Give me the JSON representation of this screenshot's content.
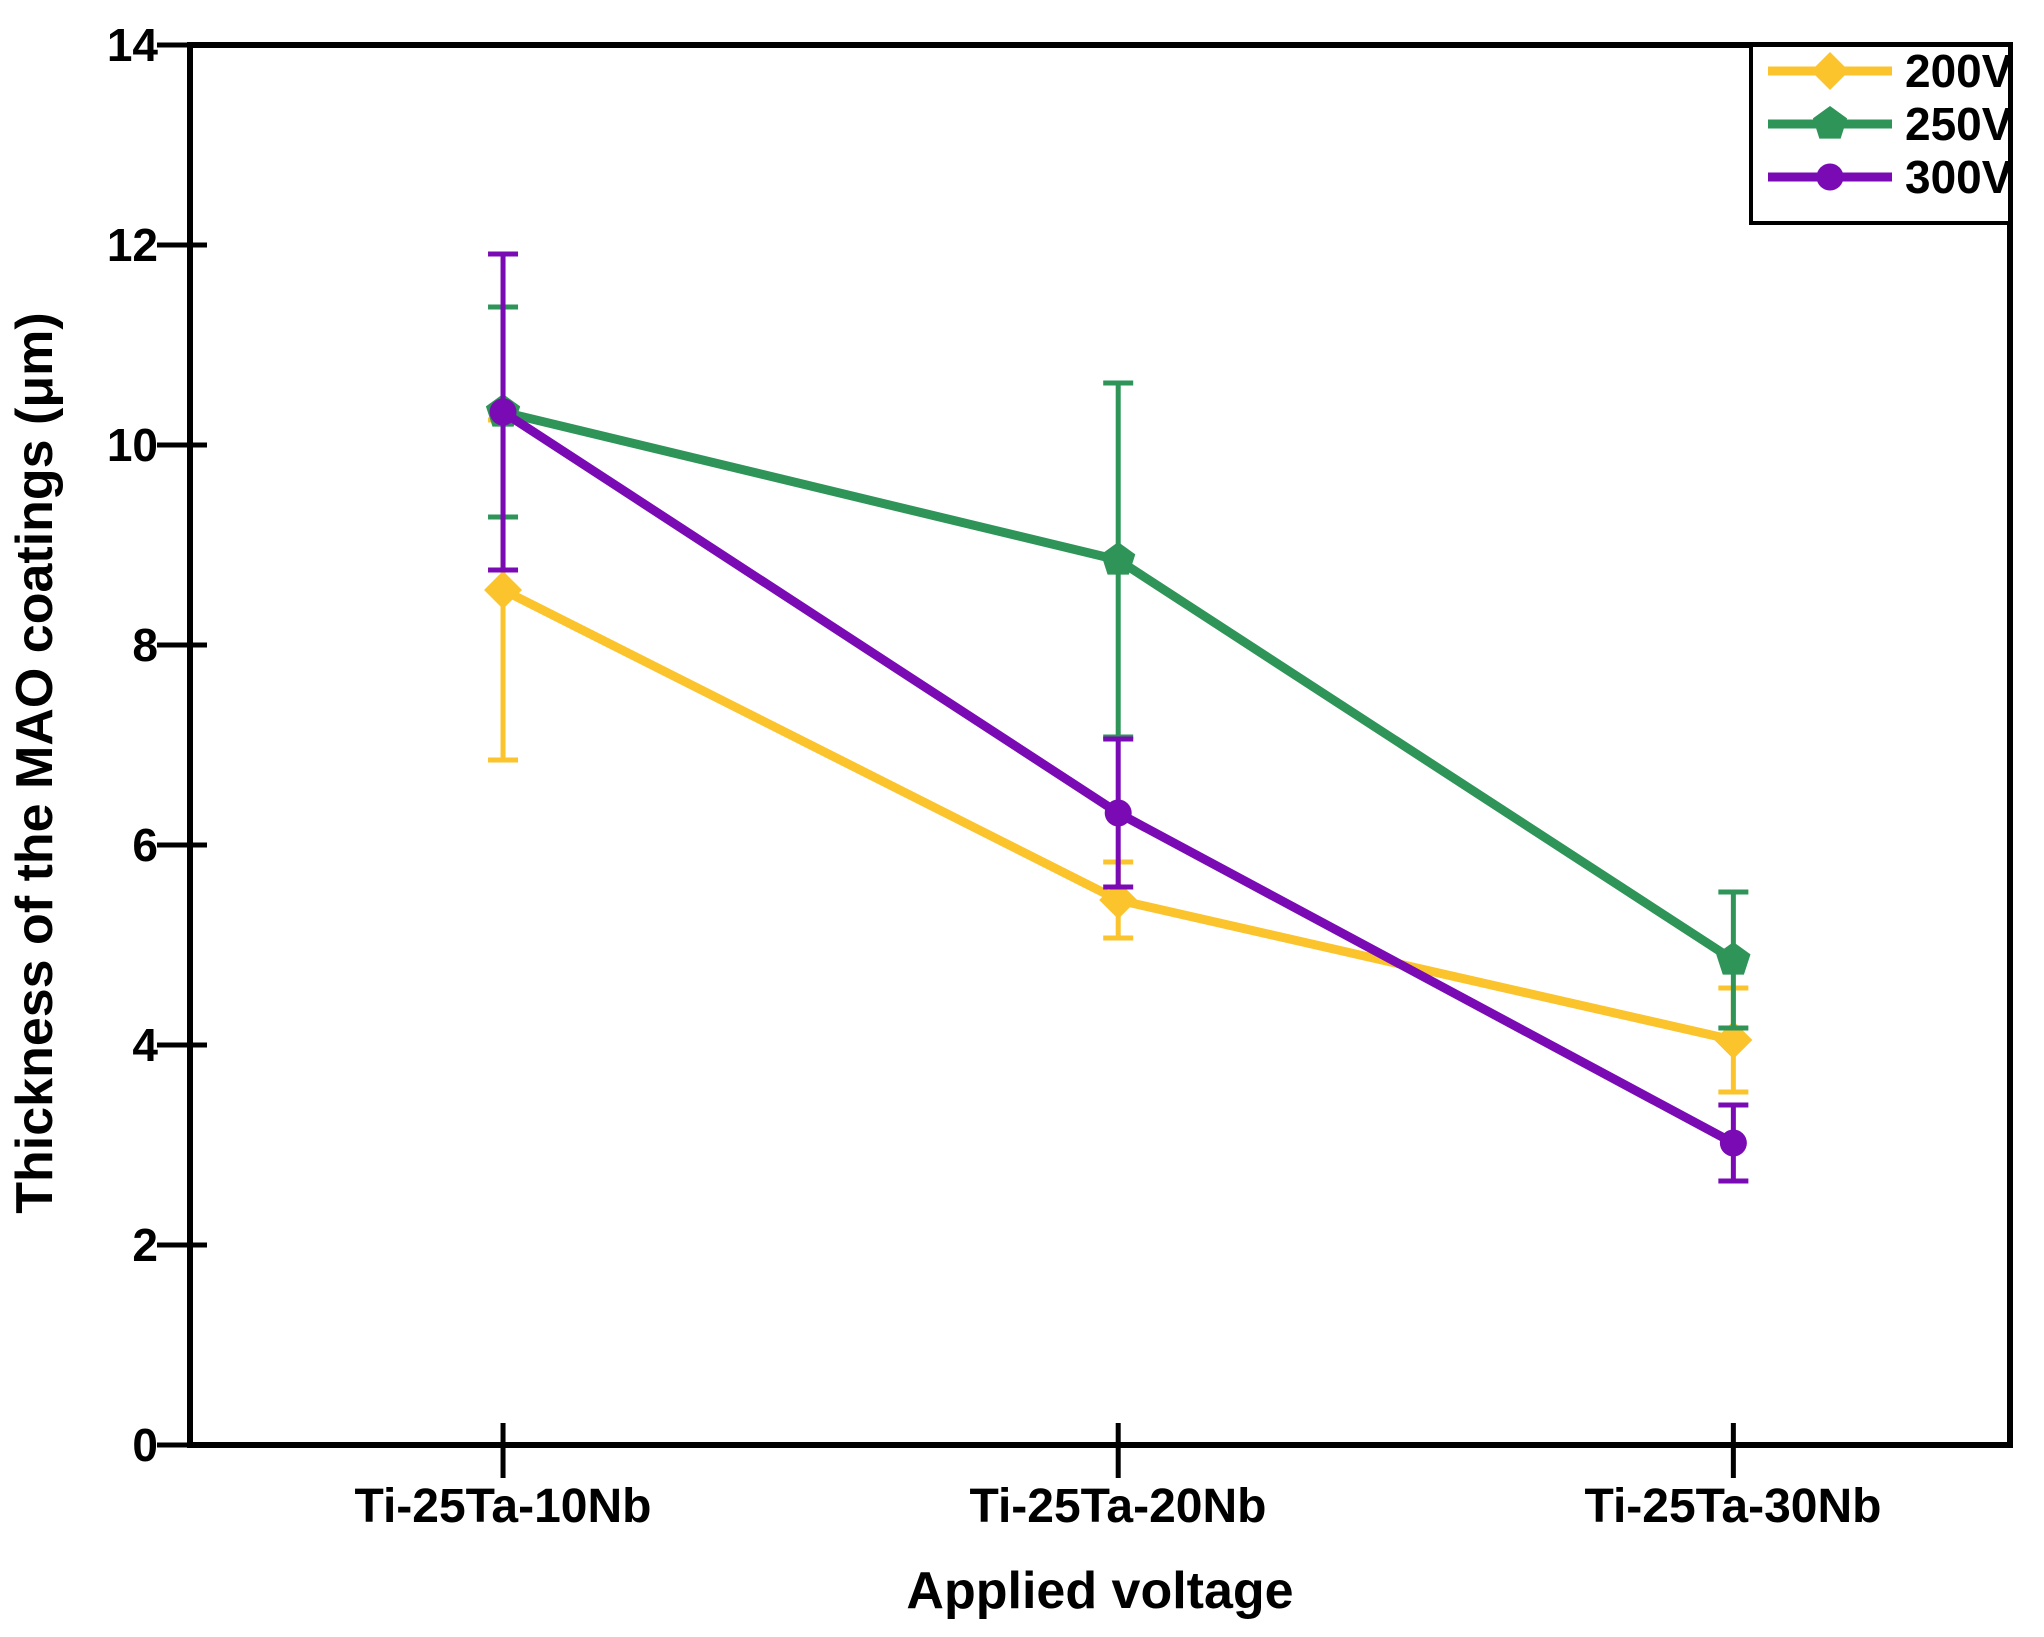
{
  "chart_data": {
    "type": "line",
    "title": "",
    "xlabel": "Applied voltage",
    "ylabel": "Thickness of the MAO coatings (μm)",
    "categories": [
      "Ti-25Ta-10Nb",
      "Ti-25Ta-20Nb",
      "Ti-25Ta-30Nb"
    ],
    "ylim": [
      0,
      14
    ],
    "ytick_step": 2,
    "ytick_labels": [
      "0",
      "2",
      "4",
      "6",
      "8",
      "10",
      "12",
      "14"
    ],
    "grid": false,
    "legend_position": "top-right-inside",
    "axis_color": "#000000",
    "background_color": "#ffffff",
    "error_bars": true,
    "series": [
      {
        "name": "200V",
        "marker": "diamond",
        "color": "#FBC42D",
        "values": [
          8.55,
          5.45,
          4.05
        ],
        "errors": [
          1.7,
          0.38,
          0.52
        ]
      },
      {
        "name": "250V",
        "marker": "pentagon",
        "color": "#2E9458",
        "values": [
          10.33,
          8.85,
          4.85
        ],
        "errors": [
          1.05,
          1.77,
          0.68
        ]
      },
      {
        "name": "300V",
        "marker": "circle",
        "color": "#7A0AB4",
        "values": [
          10.33,
          6.32,
          3.02
        ],
        "errors": [
          1.58,
          0.74,
          0.38
        ]
      }
    ]
  }
}
